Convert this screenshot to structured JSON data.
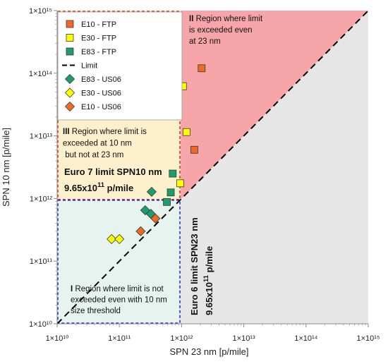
{
  "chart_data": {
    "type": "scatter",
    "xlabel": "SPN 23 nm [p/mile]",
    "ylabel": "SPN 10 nm [p/mile]",
    "xscale": "log",
    "yscale": "log",
    "xlim": [
      10000000000.0,
      1000000000000000.0
    ],
    "ylim": [
      10000000000.0,
      1000000000000000.0
    ],
    "x_ticks": [
      "1×10¹⁰",
      "1×10¹¹",
      "1×10¹²",
      "1×10¹³",
      "1×10¹⁴",
      "1×10¹⁵"
    ],
    "y_ticks": [
      "1×10¹⁰",
      "1×10¹¹",
      "1×10¹²",
      "1×10¹³",
      "1×10¹⁴",
      "1×10¹⁵"
    ],
    "grid": false,
    "legend_position": "top-left",
    "series": [
      {
        "name": "E10 - FTP",
        "marker": "square",
        "color": "#ee6a22",
        "points": [
          [
            2100000000000.0,
            120000000000000.0
          ],
          [
            1600000000000.0,
            6000000000000.0
          ]
        ]
      },
      {
        "name": "E30 - FTP",
        "marker": "square",
        "color": "#ffff00",
        "points": [
          [
            1050000000000.0,
            62000000000000.0
          ],
          [
            1200000000000.0,
            11500000000000.0
          ],
          [
            950000000000.0,
            1750000000000.0
          ]
        ]
      },
      {
        "name": "E83 - FTP",
        "marker": "square",
        "color": "#1e9c6c",
        "points": [
          [
            720000000000.0,
            2500000000000.0
          ],
          [
            670000000000.0,
            1250000000000.0
          ],
          [
            580000000000.0,
            880000000000.0
          ]
        ]
      },
      {
        "name": "Limit",
        "marker": "dashed-line",
        "color": "#000000",
        "points": [
          [
            10000000000.0,
            10000000000.0
          ],
          [
            1000000000000000.0,
            1000000000000000.0
          ]
        ]
      },
      {
        "name": "E83 - US06",
        "marker": "diamond",
        "color": "#1e9c6c",
        "points": [
          [
            330000000000.0,
            1280000000000.0
          ],
          [
            260000000000.0,
            650000000000.0
          ],
          [
            320000000000.0,
            570000000000.0
          ]
        ]
      },
      {
        "name": "E30 - US06",
        "marker": "diamond",
        "color": "#ffff00",
        "points": [
          [
            75000000000.0,
            225000000000.0
          ],
          [
            100000000000.0,
            225000000000.0
          ]
        ]
      },
      {
        "name": "E10 - US06",
        "marker": "diamond",
        "color": "#ee6a22",
        "points": [
          [
            380000000000.0,
            480000000000.0
          ],
          [
            220000000000.0,
            300000000000.0
          ]
        ]
      }
    ],
    "regions": [
      {
        "id": "I",
        "x": [
          10000000000.0,
          965000000000.0
        ],
        "y": [
          10000000000.0,
          965000000000.0
        ],
        "fill": "#e6f3ee",
        "border": "#2b2bd6",
        "numeral": "I",
        "lines": [
          "Region where limit is not",
          "exceeded even with 10 nm",
          "size threshold"
        ]
      },
      {
        "id": "II",
        "fill": "#f6a6a8",
        "numeral": "II",
        "lines": [
          "Region where limit",
          "is exceeded even",
          "at 23 nm"
        ]
      },
      {
        "id": "III",
        "x": [
          10000000000.0,
          965000000000.0
        ],
        "y": [
          965000000000.0,
          1000000000000000.0
        ],
        "fill": "#fdf0cc",
        "border": "#e0322a",
        "numeral": "III",
        "lines": [
          "Region where limit is",
          "exceeded at 10 nm",
          "but not at 23 nm"
        ]
      },
      {
        "id": "grey",
        "fill": "#e6e6e6"
      }
    ],
    "limits": {
      "euro7": {
        "label": "Euro 7 limit SPN10 nm",
        "value_mantissa": "9.65x10",
        "value_exp": "11",
        "value_unit": " p/mile",
        "value": 965000000000.0
      },
      "euro6": {
        "label": "Euro 6 limit SPN23 nm",
        "value_mantissa": "9.65x10",
        "value_exp": "11",
        "value_unit": " p/mile",
        "value": 965000000000.0
      }
    }
  }
}
